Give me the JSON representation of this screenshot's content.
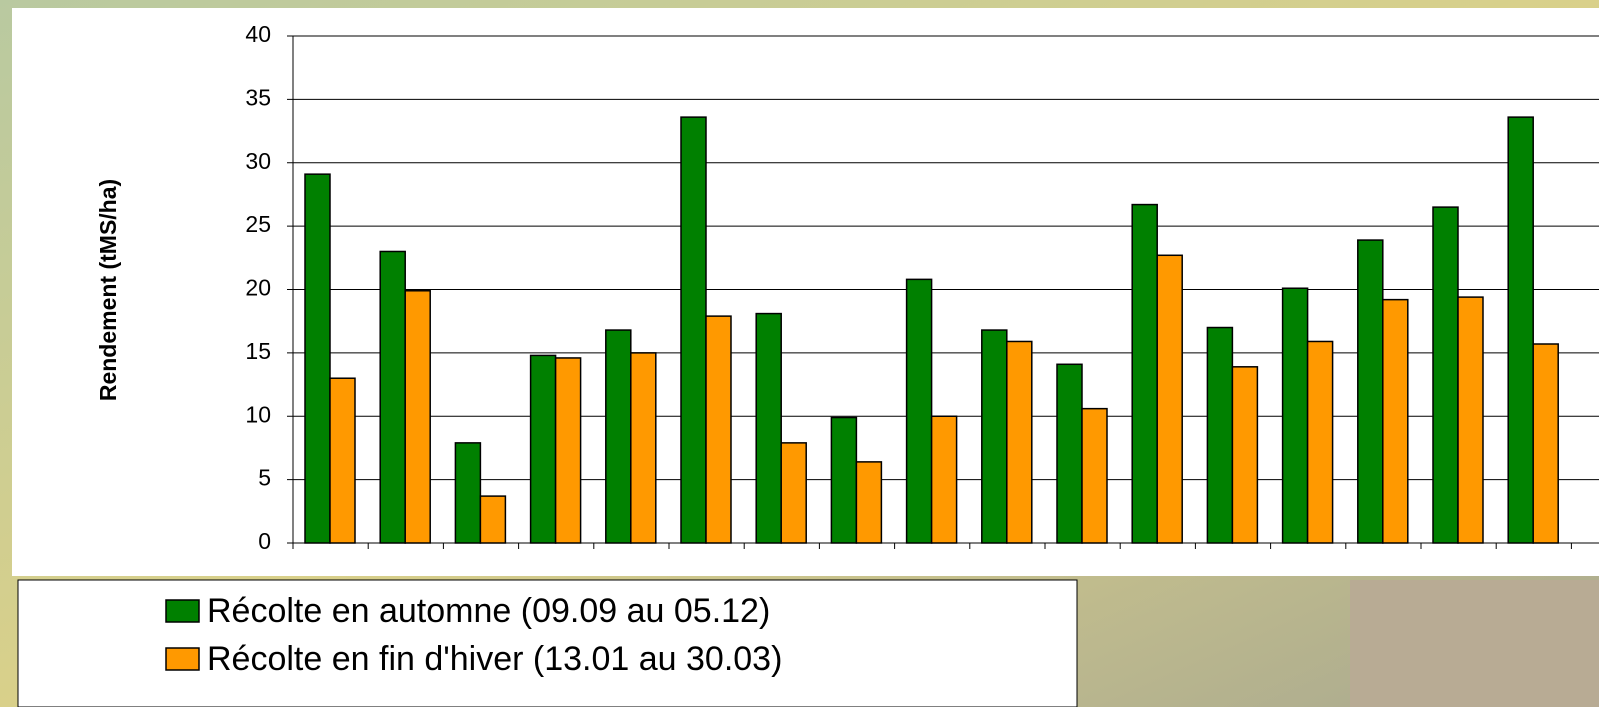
{
  "chart_data": {
    "type": "bar",
    "y_label": "Rendement (tMS/ha)",
    "categories": [
      null,
      null,
      null,
      null,
      null,
      null,
      null,
      null,
      null,
      null,
      null,
      null,
      null,
      null,
      null,
      null,
      null
    ],
    "series": [
      {
        "name": "Récolte en automne (09.09 au 05.12)",
        "color": "#008000",
        "values": [
          29.1,
          23,
          7.9,
          14.8,
          16.8,
          33.6,
          18.1,
          9.9,
          20.8,
          16.8,
          14.1,
          26.7,
          17,
          20.1,
          23.9,
          26.5,
          33.6
        ]
      },
      {
        "name": "Récolte en fin d'hiver (13.01 au 30.03)",
        "color": "#ff9900",
        "values": [
          13,
          19.9,
          3.7,
          14.6,
          15,
          17.9,
          7.9,
          6.4,
          10,
          15.9,
          10.6,
          22.7,
          13.9,
          15.9,
          19.2,
          19.4,
          15.7
        ]
      }
    ],
    "ylim": [
      0,
      40
    ],
    "yticks": [
      0,
      5,
      10,
      15,
      20,
      25,
      30,
      35,
      40
    ],
    "grid": true,
    "legend": "bottom"
  }
}
